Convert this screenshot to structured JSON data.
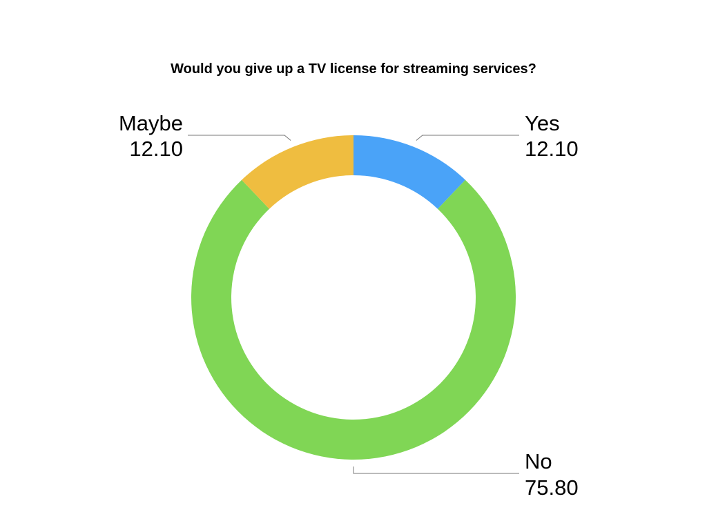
{
  "chart_data": {
    "type": "donut",
    "title": "Would you give up a TV license for streaming services?",
    "categories": [
      "Yes",
      "No",
      "Maybe"
    ],
    "values": [
      12.1,
      75.8,
      12.1
    ],
    "value_labels": [
      "12.10",
      "75.80",
      "12.10"
    ],
    "colors": [
      "#4aa3f8",
      "#80d655",
      "#efbd40"
    ]
  }
}
